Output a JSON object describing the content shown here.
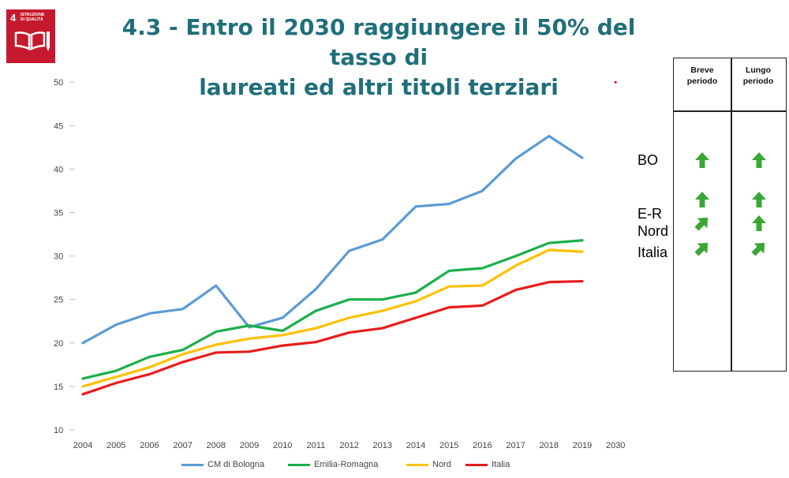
{
  "logo": {
    "number": "4",
    "text": "ISTRUZIONE\nDI QUALITÀ",
    "color": "#c5192d"
  },
  "title_line1": "4.3 - Entro il 2030 raggiungere il 50% del tasso di",
  "title_line2": "laureati ed altri titoli terziari",
  "labels": {
    "bo": "BO",
    "er": "E-R",
    "nord": "Nord",
    "italia": "Italia"
  },
  "table": {
    "col1": "Breve\nperiodo",
    "col2": "Lungo\nperiodo",
    "rows": [
      {
        "region": "BO",
        "short": "up",
        "long": "up"
      },
      {
        "region": "E-R",
        "short": "up",
        "long": "up"
      },
      {
        "region": "Nord",
        "short": "up-right",
        "long": "up"
      },
      {
        "region": "Italia",
        "short": "up-right",
        "long": "up-right"
      }
    ],
    "arrow_color": "#3aa635"
  },
  "chart_data": {
    "type": "line",
    "categories": [
      "2004",
      "2005",
      "2006",
      "2007",
      "2008",
      "2009",
      "2010",
      "2011",
      "2012",
      "2013",
      "2014",
      "2015",
      "2016",
      "2017",
      "2018",
      "2019",
      "2030"
    ],
    "ylim": [
      10,
      50
    ],
    "yticks": [
      10,
      15,
      20,
      25,
      30,
      35,
      40,
      45,
      50
    ],
    "grid": "none",
    "legend_position": "bottom",
    "target": {
      "x": "2030",
      "y": 50,
      "color": "#e00000"
    },
    "series": [
      {
        "name": "CM di Bologna",
        "color": "#5b9bd5",
        "values": [
          20.0,
          22.1,
          23.4,
          23.9,
          26.6,
          21.8,
          22.9,
          26.2,
          30.6,
          31.9,
          35.7,
          36.0,
          37.5,
          41.2,
          43.8,
          41.3,
          null
        ]
      },
      {
        "name": "Emilia-Romagna",
        "color": "#1aaf4a",
        "values": [
          15.9,
          16.8,
          18.4,
          19.2,
          21.3,
          22.0,
          21.4,
          23.7,
          25.0,
          25.0,
          25.8,
          28.3,
          28.6,
          30.0,
          31.5,
          31.8,
          null
        ]
      },
      {
        "name": "Nord",
        "color": "#ffc000",
        "values": [
          15.0,
          16.1,
          17.2,
          18.7,
          19.8,
          20.5,
          20.9,
          21.7,
          22.9,
          23.7,
          24.8,
          26.5,
          26.6,
          28.9,
          30.7,
          30.5,
          null
        ]
      },
      {
        "name": "Italia",
        "color": "#e81c1c",
        "values": [
          14.1,
          15.4,
          16.4,
          17.8,
          18.9,
          19.0,
          19.7,
          20.1,
          21.2,
          21.7,
          22.9,
          24.1,
          24.3,
          26.1,
          27.0,
          27.1,
          null
        ]
      }
    ]
  }
}
